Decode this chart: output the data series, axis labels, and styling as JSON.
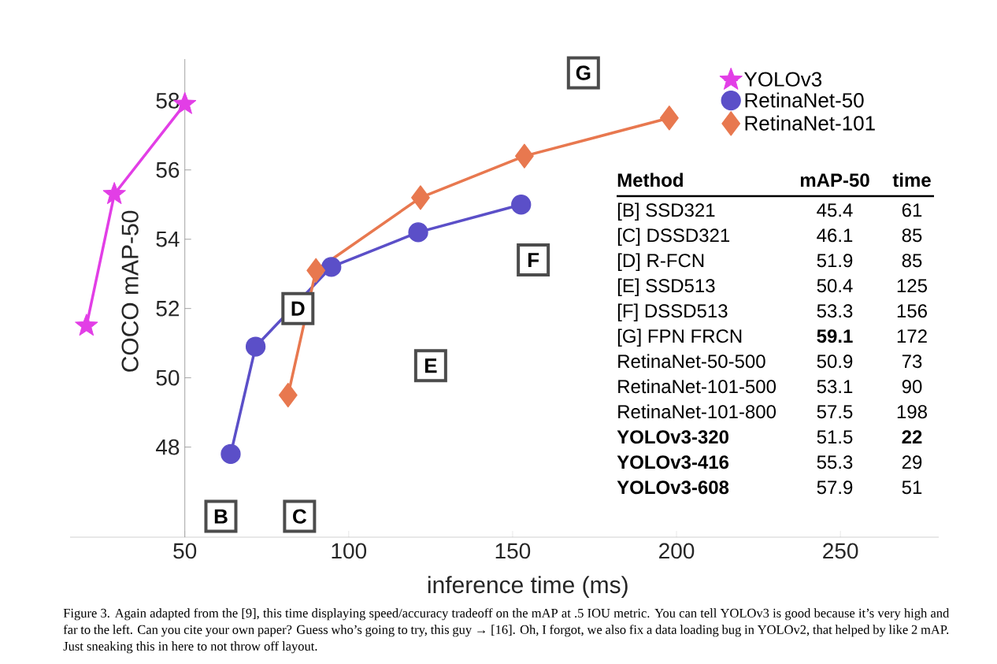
{
  "chart_data": {
    "type": "line",
    "xlabel": "inference time (ms)",
    "ylabel": "COCO mAP-50",
    "xlim": [
      15,
      280
    ],
    "ylim": [
      45.4,
      59.2
    ],
    "xticks": [
      50,
      100,
      150,
      200,
      250
    ],
    "yticks": [
      48,
      50,
      52,
      54,
      56,
      58
    ],
    "legend": "top right",
    "series": [
      {
        "name": "YOLOv3",
        "color": "#e23ee6",
        "marker": "star",
        "x": [
          20,
          28.5,
          50
        ],
        "values": [
          51.5,
          55.3,
          57.9
        ]
      },
      {
        "name": "RetinaNet-50",
        "color": "#5b4fc8",
        "marker": "circle",
        "x": [
          64,
          71.6,
          94.7,
          121.2,
          152.6
        ],
        "values": [
          47.8,
          50.9,
          53.2,
          54.2,
          55.0
        ]
      },
      {
        "name": "RetinaNet-101",
        "color": "#e8784f",
        "marker": "diamond",
        "x": [
          81.5,
          90,
          121.9,
          153.6,
          197.8
        ],
        "values": [
          49.5,
          53.1,
          55.2,
          56.4,
          57.5
        ]
      }
    ],
    "annotations": [
      {
        "text": "B",
        "x": 61,
        "y": 46.0
      },
      {
        "text": "C",
        "x": 85,
        "y": 46.0
      },
      {
        "text": "D",
        "x": 84.5,
        "y": 52.0
      },
      {
        "text": "E",
        "x": 125,
        "y": 50.35
      },
      {
        "text": "F",
        "x": 156.3,
        "y": 53.4
      },
      {
        "text": "G",
        "x": 171.6,
        "y": 58.8
      },
      "**Method**",
      "**mAP-50**",
      "**time**",
      "[B] SSD321",
      "45.4",
      "61",
      "[C] DSSD321",
      "46.1",
      "85",
      "[D] R-FCN",
      "51.9",
      "85",
      "[E] SSD513",
      "50.4",
      "125",
      "[F] DSSD513",
      "53.3",
      "156",
      "[G] FPN FRCN",
      "**59.1**",
      "172",
      "RetinaNet-50-500",
      "50.9",
      "73",
      "RetinaNet-101-500",
      "53.1",
      "90",
      "RetinaNet-101-800",
      "57.5",
      "198",
      "**YOLOv3-320**",
      "51.5",
      "**22**",
      "**YOLOv3-416**",
      "55.3",
      "29",
      "**YOLOv3-608**",
      "57.9",
      "51",
      "Figure 3. Again adapted from the [9], this time displaying speed/accuracy tradeoff on the mAP at .5 IOU metric. You can tell YOLOv3 is good because it’s very high and far to the left. Can you cite your own paper? Guess who’s going to try, this guy → [16]. Oh, I forgot, we also fix a data loading bug in YOLOv2, that helped by like 2 mAP. Just sneaking this in here to not throw off layout."
    ]
  }
}
